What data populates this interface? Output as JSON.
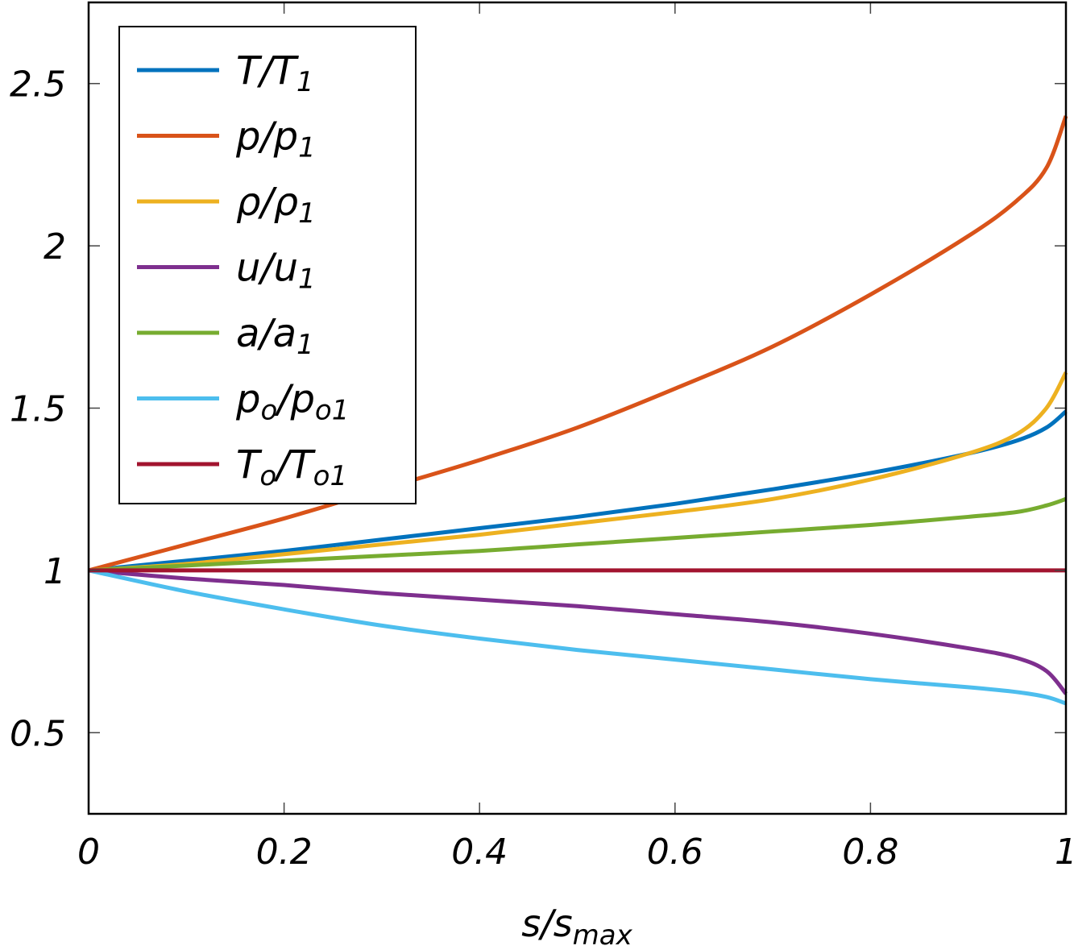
{
  "chart_data": {
    "type": "line",
    "xlabel": "s/s",
    "xlabel_sub": "max",
    "ylabel": "",
    "xlim": [
      0,
      1
    ],
    "ylim": [
      0.25,
      2.75
    ],
    "xticks": [
      0,
      0.2,
      0.4,
      0.6,
      0.8,
      1
    ],
    "xtick_labels": [
      "0",
      "0.2",
      "0.4",
      "0.6",
      "0.8",
      "1"
    ],
    "yticks": [
      0.5,
      1,
      1.5,
      2,
      2.5
    ],
    "ytick_labels": [
      "0.5",
      "1",
      "1.5",
      "2",
      "2.5"
    ],
    "grid": false,
    "legend_position": "top-left",
    "x": [
      0,
      0.1,
      0.2,
      0.3,
      0.4,
      0.5,
      0.6,
      0.7,
      0.8,
      0.9,
      0.95,
      0.98,
      1
    ],
    "series": [
      {
        "name": "T/T",
        "sub": "1",
        "color": "#0072BD",
        "values": [
          1.0,
          1.03,
          1.06,
          1.095,
          1.13,
          1.165,
          1.205,
          1.25,
          1.3,
          1.36,
          1.4,
          1.44,
          1.49
        ]
      },
      {
        "name": "p/p",
        "sub": "1",
        "color": "#D95319",
        "values": [
          1.0,
          1.08,
          1.16,
          1.25,
          1.34,
          1.44,
          1.56,
          1.69,
          1.85,
          2.03,
          2.14,
          2.24,
          2.4
        ]
      },
      {
        "name": "ρ/ρ",
        "sub": "1",
        "color": "#EDB120",
        "values": [
          1.0,
          1.02,
          1.05,
          1.08,
          1.11,
          1.145,
          1.18,
          1.22,
          1.28,
          1.36,
          1.42,
          1.5,
          1.61
        ]
      },
      {
        "name": "u/u",
        "sub": "1",
        "color": "#7E2F8E",
        "values": [
          1.0,
          0.975,
          0.955,
          0.93,
          0.91,
          0.89,
          0.865,
          0.84,
          0.805,
          0.76,
          0.73,
          0.69,
          0.62
        ]
      },
      {
        "name": "a/a",
        "sub": "1",
        "color": "#77AC30",
        "values": [
          1.0,
          1.015,
          1.03,
          1.045,
          1.06,
          1.08,
          1.1,
          1.12,
          1.14,
          1.165,
          1.18,
          1.2,
          1.22
        ]
      },
      {
        "name": "p",
        "sub": "o",
        "name2": "/p",
        "sub2": "o1",
        "color": "#4DBEEE",
        "values": [
          1.0,
          0.935,
          0.88,
          0.83,
          0.79,
          0.755,
          0.725,
          0.695,
          0.665,
          0.64,
          0.625,
          0.61,
          0.59
        ]
      },
      {
        "name": "T",
        "sub": "o",
        "name2": "/T",
        "sub2": "o1",
        "color": "#A2142F",
        "values": [
          1.0,
          1.0,
          1.0,
          1.0,
          1.0,
          1.0,
          1.0,
          1.0,
          1.0,
          1.0,
          1.0,
          1.0,
          1.0
        ]
      }
    ]
  }
}
